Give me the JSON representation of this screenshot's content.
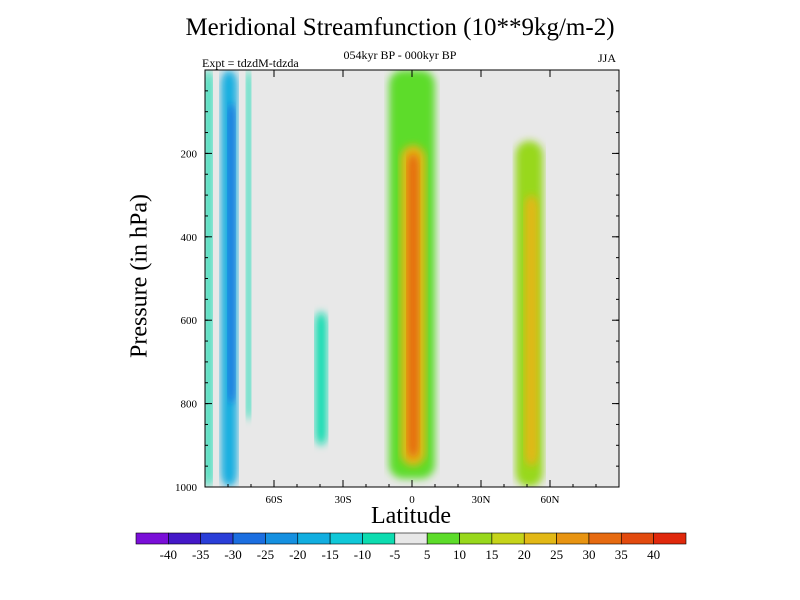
{
  "chart_data": {
    "type": "heatmap",
    "title": "Meridional Streamfunction (10**9kg/m-2)",
    "subtitle": "054kyr BP - 000kyr BP",
    "experiment": "Expt = tdzdM-tdzda",
    "season": "JJA",
    "xlabel": "Latitude",
    "ylabel": "Pressure (in hPa)",
    "xlim": [
      -90,
      90
    ],
    "ylim": [
      1000,
      0
    ],
    "x_ticks": [
      {
        "value": -60,
        "label": "60S"
      },
      {
        "value": -30,
        "label": "30S"
      },
      {
        "value": 0,
        "label": "0"
      },
      {
        "value": 30,
        "label": "30N"
      },
      {
        "value": 60,
        "label": "60N"
      }
    ],
    "y_ticks": [
      {
        "value": 200,
        "label": "200"
      },
      {
        "value": 400,
        "label": "400"
      },
      {
        "value": 600,
        "label": "600"
      },
      {
        "value": 800,
        "label": "800"
      },
      {
        "value": 1000,
        "label": "1000"
      }
    ],
    "colorbar": {
      "levels": [
        -40,
        -35,
        -30,
        -25,
        -20,
        -15,
        -10,
        -5,
        5,
        10,
        15,
        20,
        25,
        30,
        35,
        40
      ],
      "labels": [
        "-40",
        "-35",
        "-30",
        "-25",
        "-20",
        "-15",
        "-10",
        "-5",
        "5",
        "10",
        "15",
        "20",
        "25",
        "30",
        "35",
        "40"
      ],
      "colors": [
        "#7a0fd8",
        "#4418c8",
        "#2a3ed8",
        "#1b6ee0",
        "#1590e0",
        "#12aee0",
        "#10c8d8",
        "#0ddcb0",
        "#e8e8e8",
        "#5ddc2a",
        "#98d81c",
        "#c6d41a",
        "#e2b816",
        "#e89412",
        "#e66a10",
        "#e24a0e",
        "#e0280c"
      ]
    },
    "field": [
      {
        "lat": [
          -90,
          -87
        ],
        "p": [
          0,
          1000
        ],
        "value": -10
      },
      {
        "lat": [
          -83,
          -76
        ],
        "p": [
          0,
          1000
        ],
        "value": -20
      },
      {
        "lat": [
          -80,
          -77
        ],
        "p": [
          80,
          800
        ],
        "value": -30
      },
      {
        "lat": [
          -72,
          -70
        ],
        "p": [
          0,
          840
        ],
        "value": -10
      },
      {
        "lat": [
          -42,
          -37
        ],
        "p": [
          580,
          900
        ],
        "value": -10
      },
      {
        "lat": [
          -10,
          10
        ],
        "p": [
          0,
          980
        ],
        "value": 5
      },
      {
        "lat": [
          -5,
          6
        ],
        "p": [
          180,
          950
        ],
        "value": 20
      },
      {
        "lat": [
          -2,
          3
        ],
        "p": [
          200,
          930
        ],
        "value": 30
      },
      {
        "lat": [
          20,
          32
        ],
        "p": [
          180,
          700
        ],
        "value": -5
      },
      {
        "lat": [
          45,
          57
        ],
        "p": [
          170,
          1000
        ],
        "value": 10
      },
      {
        "lat": [
          49,
          55
        ],
        "p": [
          300,
          950
        ],
        "value": 20
      }
    ]
  }
}
